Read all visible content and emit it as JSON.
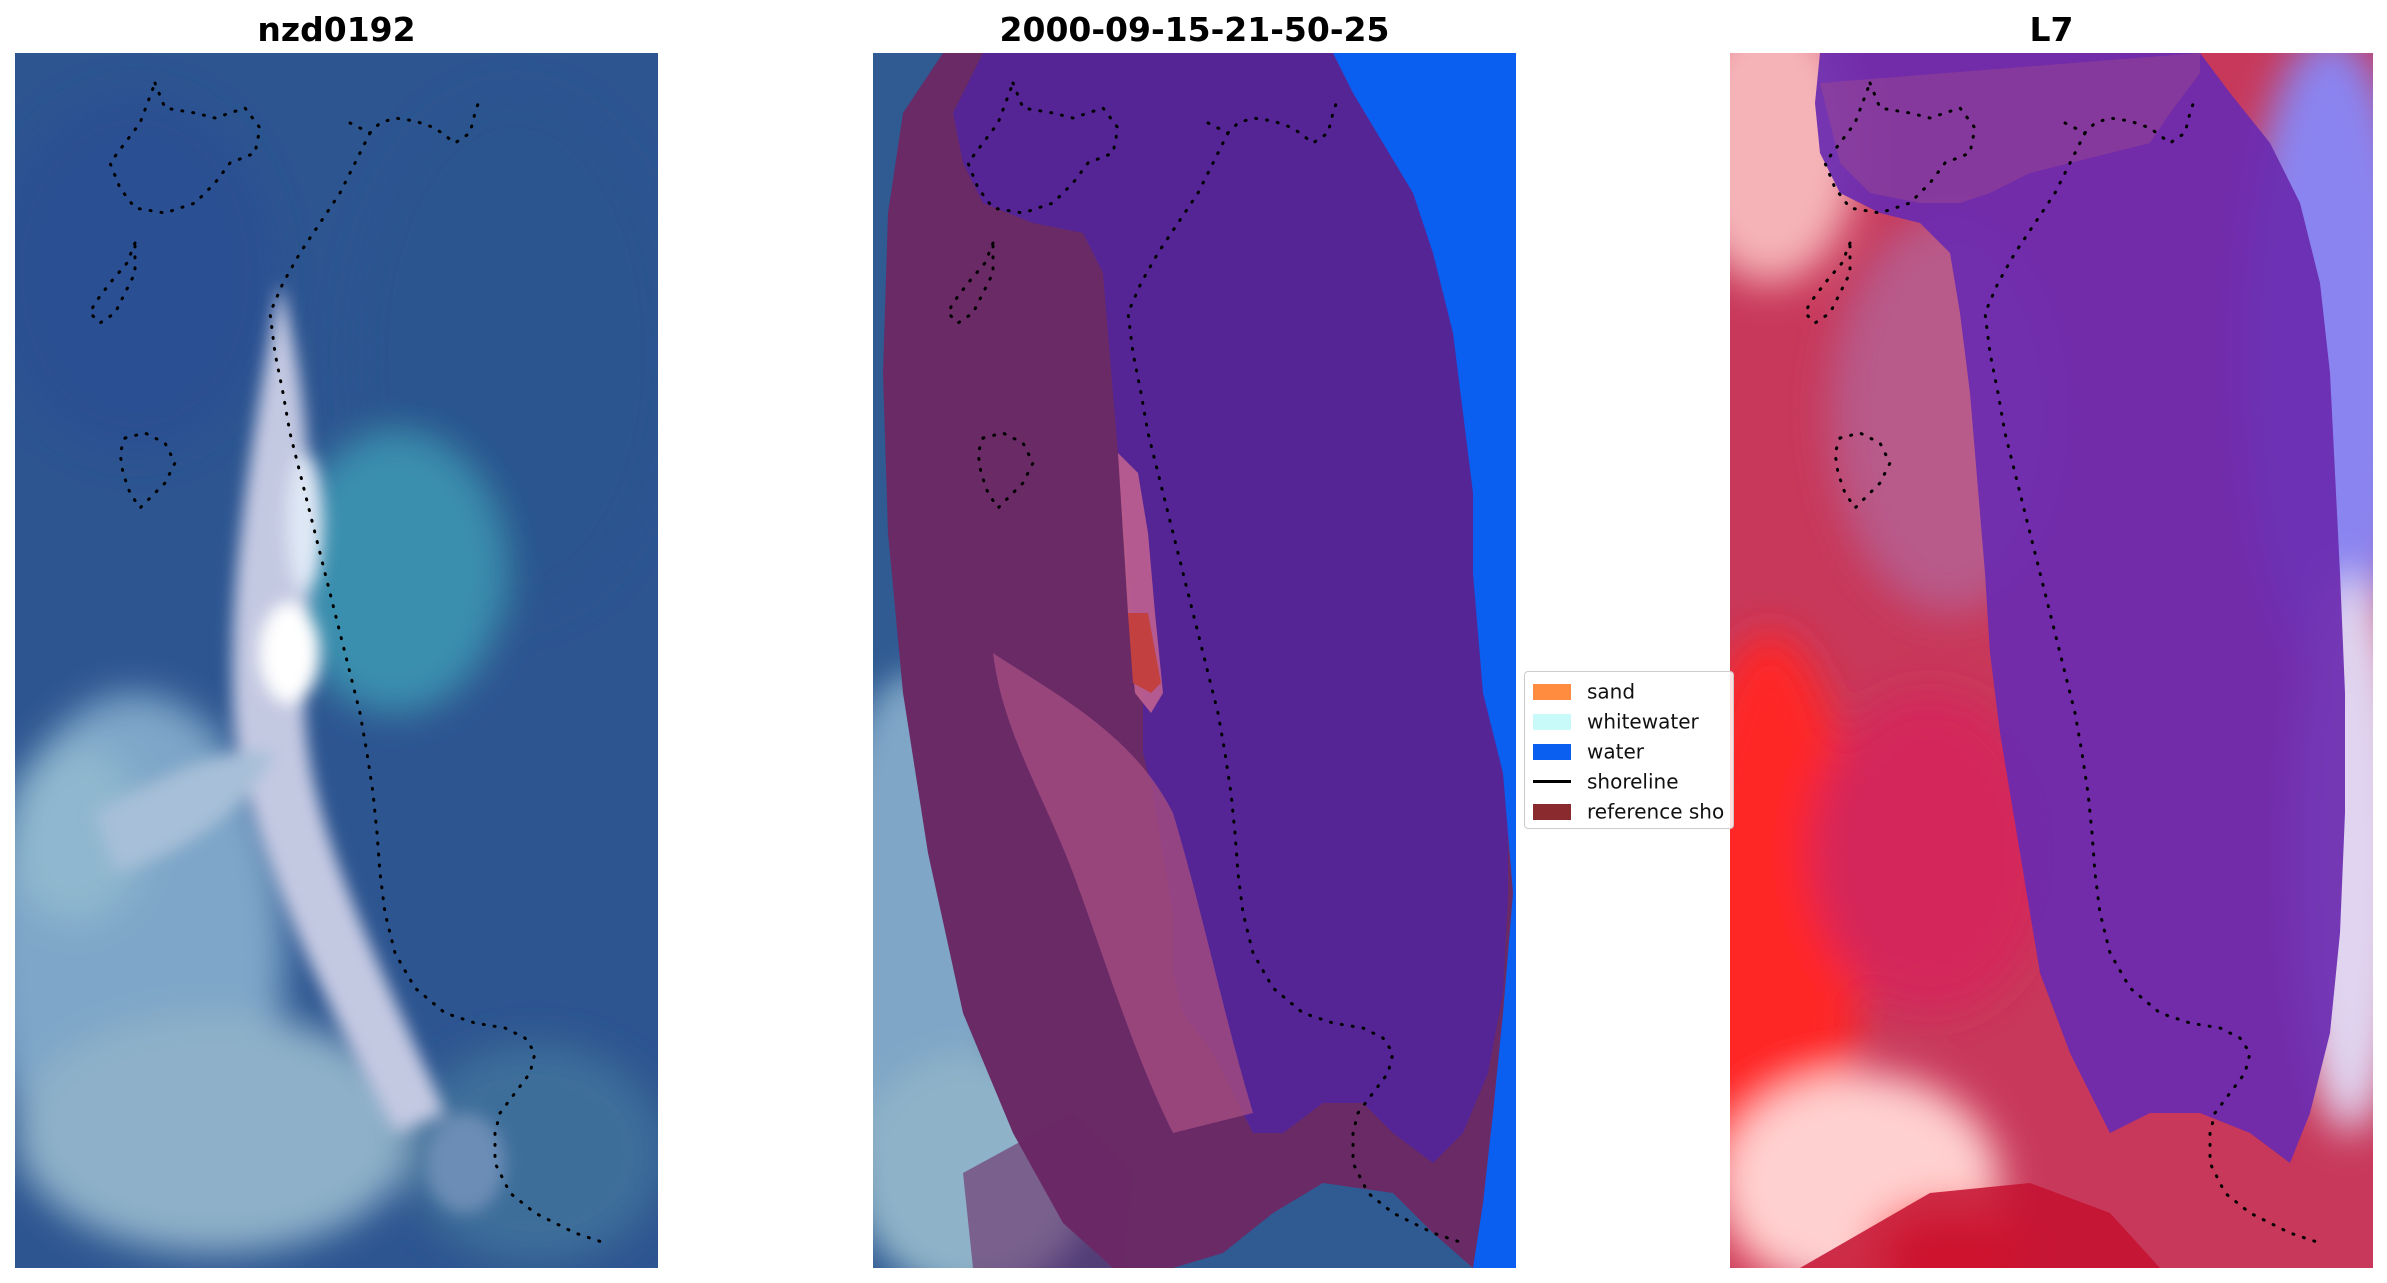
{
  "panels": [
    {
      "title": "nzd0192"
    },
    {
      "title": "2000-09-15-21-50-25"
    },
    {
      "title": "L7"
    }
  ],
  "legend": {
    "items": [
      {
        "label": "sand",
        "color": "#ff8c3f",
        "kind": "patch"
      },
      {
        "label": "whitewater",
        "color": "#c8fafa",
        "kind": "patch"
      },
      {
        "label": "water",
        "color": "#0a5ff0",
        "kind": "patch"
      },
      {
        "label": "shoreline",
        "color": "#000000",
        "kind": "line"
      },
      {
        "label": "reference sho",
        "color": "#8b2a2e",
        "kind": "patch"
      }
    ]
  },
  "colors": {
    "ocean_blue": "#2c5590",
    "reef_light": "#8fb0cf",
    "classified_land": "#6a2a66",
    "classified_sea": "#552596",
    "water_class": "#0a5ff0",
    "index_positive": "#c8385a",
    "index_negative": "#6a2ab0",
    "index_red": "#ff2020"
  }
}
